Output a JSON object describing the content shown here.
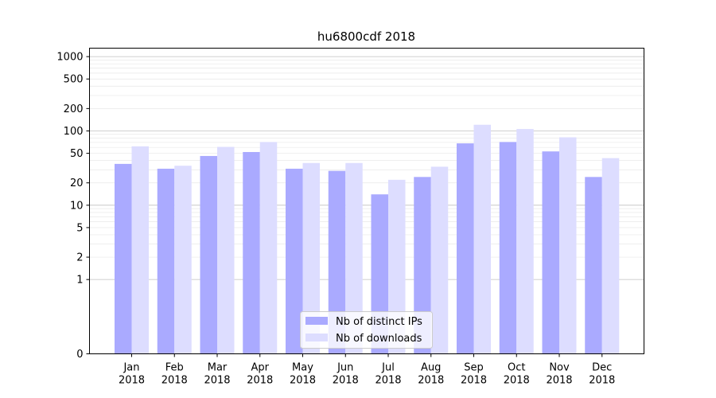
{
  "chart_data": {
    "type": "bar",
    "title": "hu6800cdf 2018",
    "xlabel": "",
    "ylabel": "",
    "y_scale": "symlog",
    "ylim": [
      0,
      1300
    ],
    "y_ticks": [
      "0",
      "1",
      "2",
      "5",
      "10",
      "20",
      "50",
      "100",
      "200",
      "500",
      "1000"
    ],
    "categories": [
      "Jan\n2018",
      "Feb\n2018",
      "Mar\n2018",
      "Apr\n2018",
      "May\n2018",
      "Jun\n2018",
      "Jul\n2018",
      "Aug\n2018",
      "Sep\n2018",
      "Oct\n2018",
      "Nov\n2018",
      "Dec\n2018"
    ],
    "series": [
      {
        "name": "Nb of distinct IPs",
        "color": "#aaaaff",
        "values": [
          36,
          31,
          46,
          52,
          31,
          29,
          14,
          24,
          68,
          71,
          53,
          24
        ]
      },
      {
        "name": "Nb of downloads",
        "color": "#ddddff",
        "values": [
          62,
          34,
          61,
          71,
          37,
          37,
          22,
          33,
          121,
          106,
          82,
          43
        ]
      }
    ],
    "legend_position": "bottom-center",
    "grid": "horizontal"
  }
}
